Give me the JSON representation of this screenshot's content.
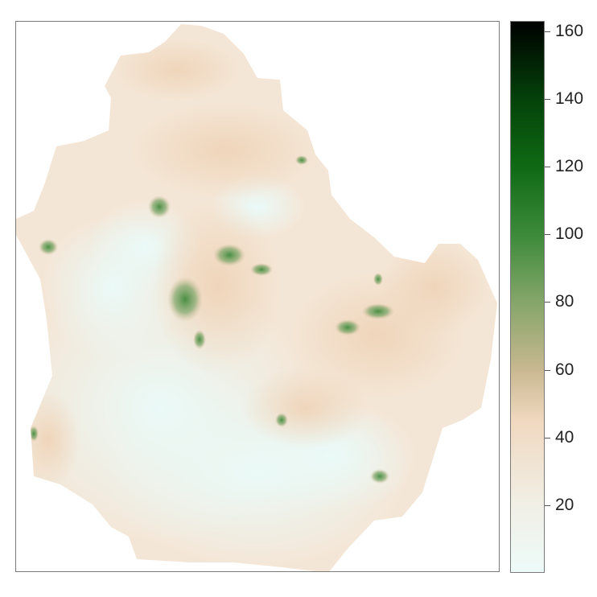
{
  "legend": {
    "ticks": [
      "20",
      "40",
      "60",
      "80",
      "100",
      "120",
      "140",
      "160"
    ],
    "tick_values": [
      20,
      40,
      60,
      80,
      100,
      120,
      140,
      160
    ],
    "range": [
      0,
      163
    ],
    "color_stops": [
      {
        "value": 0,
        "color": "#edfbf9"
      },
      {
        "value": 20,
        "color": "#f1efe6"
      },
      {
        "value": 45,
        "color": "#f0d8bf"
      },
      {
        "value": 60,
        "color": "#c8b890"
      },
      {
        "value": 80,
        "color": "#85a66a"
      },
      {
        "value": 100,
        "color": "#3c8a3a"
      },
      {
        "value": 120,
        "color": "#0f6a14"
      },
      {
        "value": 140,
        "color": "#04420a"
      },
      {
        "value": 163,
        "color": "#000000"
      }
    ]
  },
  "map": {
    "type": "raster",
    "fill_colors": {
      "low": "#eefaf7",
      "mid": "#f4e6d6",
      "high": "#efd6bd",
      "peak": "#4f8f48"
    }
  }
}
